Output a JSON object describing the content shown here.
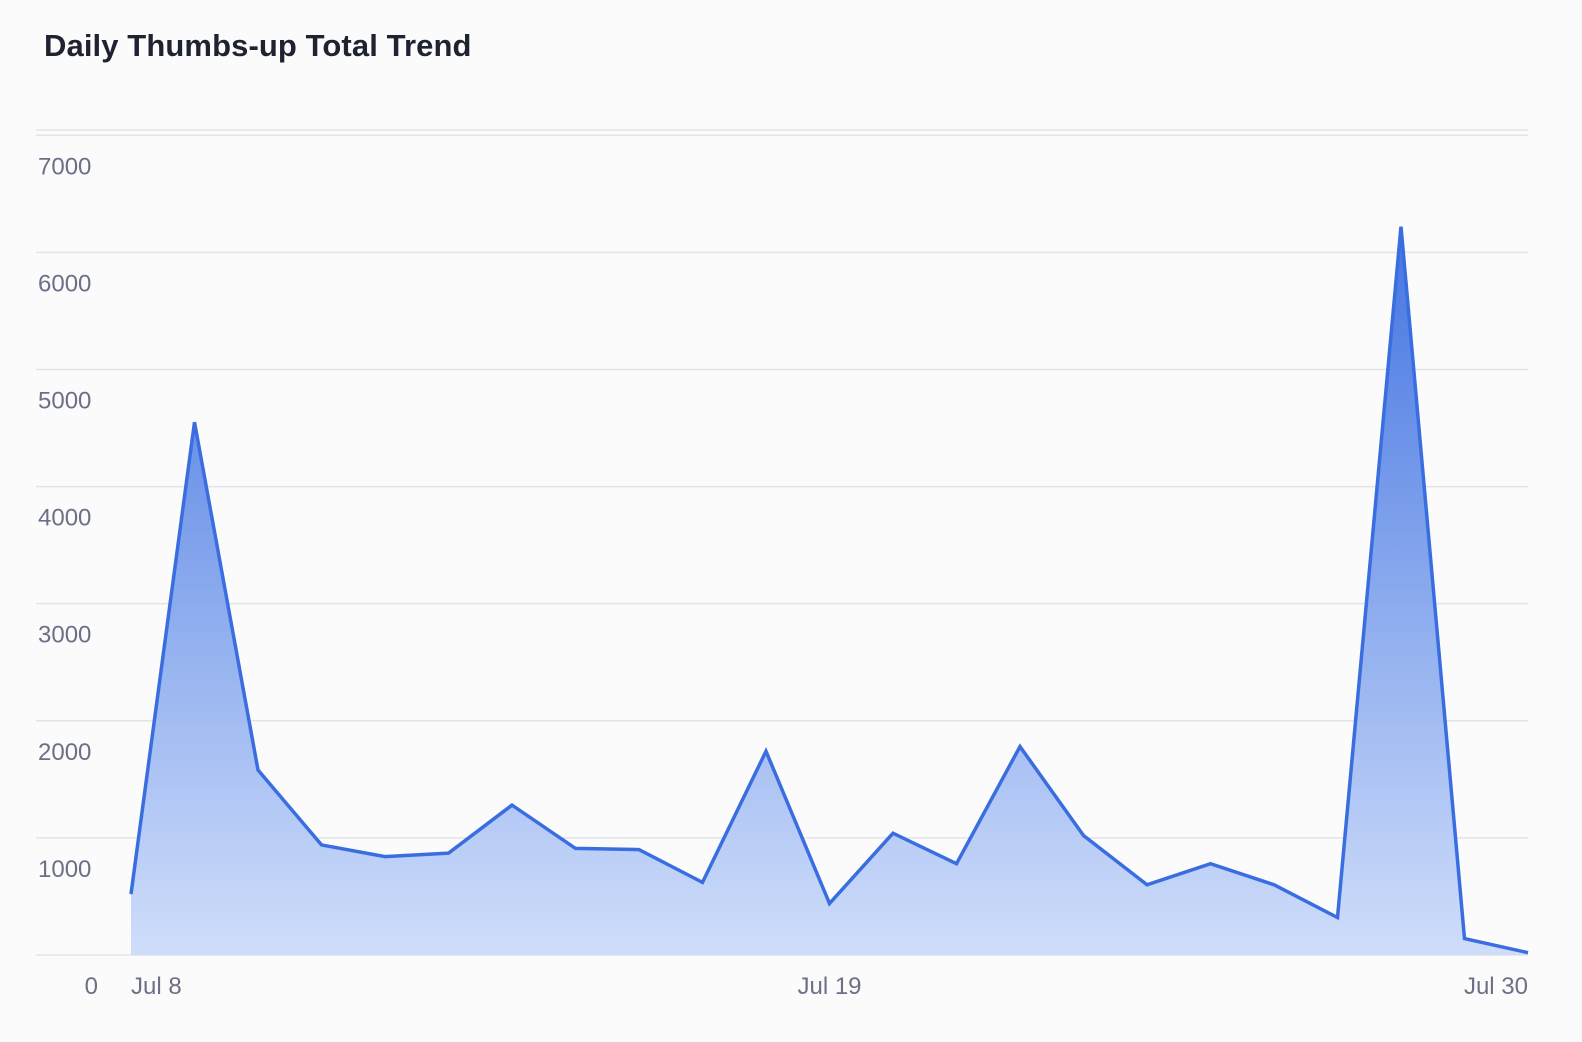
{
  "chart_data": {
    "type": "area",
    "title": "Daily Thumbs-up Total Trend",
    "xlabel": "",
    "ylabel": "",
    "x": [
      "Jul 8",
      "Jul 9",
      "Jul 10",
      "Jul 11",
      "Jul 12",
      "Jul 13",
      "Jul 14",
      "Jul 15",
      "Jul 16",
      "Jul 17",
      "Jul 18",
      "Jul 19",
      "Jul 20",
      "Jul 21",
      "Jul 22",
      "Jul 23",
      "Jul 24",
      "Jul 25",
      "Jul 26",
      "Jul 27",
      "Jul 28",
      "Jul 29",
      "Jul 30"
    ],
    "series": [
      {
        "values": [
          520,
          4550,
          1580,
          940,
          840,
          870,
          1280,
          910,
          900,
          620,
          1740,
          440,
          1040,
          780,
          1780,
          1020,
          600,
          780,
          600,
          320,
          6220,
          140,
          20
        ]
      }
    ],
    "x_ticks": [
      "Jul 8",
      "Jul 19",
      "Jul 30"
    ],
    "y_ticks": [
      "0",
      "1000",
      "2000",
      "3000",
      "4000",
      "5000",
      "6000",
      "7000"
    ],
    "ylim": [
      0,
      7000
    ],
    "grid": true,
    "legend": "none",
    "colors": {
      "line": "#3a6ee0",
      "fill_top": "#3a6ee0",
      "fill_bottom": "#cddcfa",
      "grid": "#e3e4e8",
      "axis_text": "#6c7087",
      "title": "#1f2230"
    }
  }
}
